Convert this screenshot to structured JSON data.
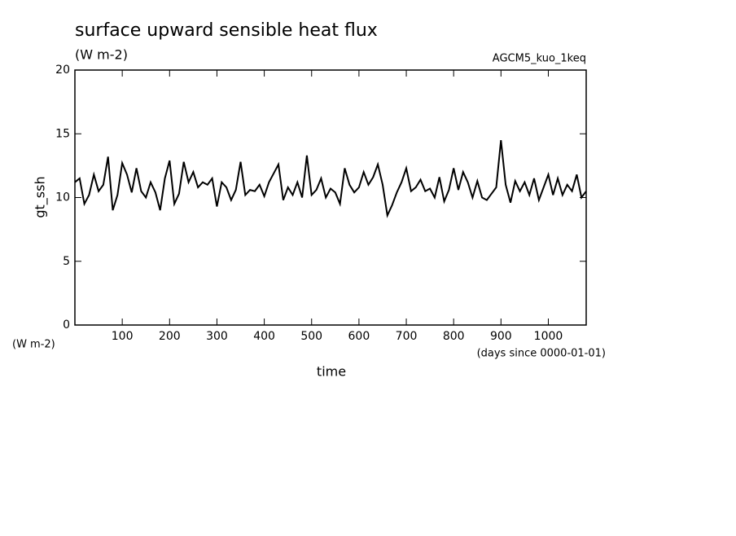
{
  "chart_data": {
    "type": "line",
    "title": "surface upward sensible heat flux",
    "subtitle": "(W m-2)",
    "run_label": "AGCM5_kuo_1keq",
    "y_label": "gt_ssh",
    "x_label": "time",
    "corner_label": "(W m-2)",
    "x_units": "(days since 0000-01-01)",
    "color": "#000000",
    "xlim": [
      0,
      1080
    ],
    "ylim": [
      0,
      20
    ],
    "xticks": [
      100,
      200,
      300,
      400,
      500,
      600,
      700,
      800,
      900,
      1000
    ],
    "yticks": [
      0,
      5,
      10,
      15,
      20
    ],
    "x": [
      0,
      10,
      20,
      30,
      40,
      50,
      60,
      70,
      80,
      90,
      100,
      110,
      120,
      130,
      140,
      150,
      160,
      170,
      180,
      190,
      200,
      210,
      220,
      230,
      240,
      250,
      260,
      270,
      280,
      290,
      300,
      310,
      320,
      330,
      340,
      350,
      360,
      370,
      380,
      390,
      400,
      410,
      420,
      430,
      440,
      450,
      460,
      470,
      480,
      490,
      500,
      510,
      520,
      530,
      540,
      550,
      560,
      570,
      580,
      590,
      600,
      610,
      620,
      630,
      640,
      650,
      660,
      670,
      680,
      690,
      700,
      710,
      720,
      730,
      740,
      750,
      760,
      770,
      780,
      790,
      800,
      810,
      820,
      830,
      840,
      850,
      860,
      870,
      880,
      890,
      900,
      910,
      920,
      930,
      940,
      950,
      960,
      970,
      980,
      990,
      1000,
      1010,
      1020,
      1030,
      1040,
      1050,
      1060,
      1070,
      1080
    ],
    "values": [
      11.2,
      11.5,
      9.5,
      10.2,
      11.8,
      10.5,
      11.0,
      13.2,
      9.0,
      10.2,
      12.7,
      11.8,
      10.4,
      12.3,
      10.5,
      10.0,
      11.2,
      10.4,
      9.0,
      11.5,
      12.9,
      9.5,
      10.3,
      12.8,
      11.2,
      12.0,
      10.8,
      11.2,
      11.0,
      11.5,
      9.3,
      11.2,
      10.8,
      9.8,
      10.6,
      12.8,
      10.2,
      10.6,
      10.5,
      11.0,
      10.1,
      11.2,
      11.9,
      12.6,
      9.8,
      10.8,
      10.2,
      11.2,
      10.0,
      13.3,
      10.2,
      10.6,
      11.5,
      10.0,
      10.7,
      10.4,
      9.5,
      12.3,
      11.0,
      10.4,
      10.8,
      12.0,
      11.0,
      11.6,
      12.6,
      11.0,
      8.6,
      9.4,
      10.4,
      11.2,
      12.3,
      10.5,
      10.8,
      11.4,
      10.5,
      10.7,
      10.0,
      11.6,
      9.7,
      10.6,
      12.3,
      10.6,
      12.0,
      11.2,
      10.0,
      11.3,
      10.0,
      9.8,
      10.3,
      10.8,
      14.5,
      11.0,
      9.6,
      11.3,
      10.5,
      11.2,
      10.2,
      11.5,
      9.8,
      10.8,
      11.8,
      10.2,
      11.5,
      10.2,
      11.0,
      10.5,
      11.8,
      10.0,
      10.5
    ]
  }
}
